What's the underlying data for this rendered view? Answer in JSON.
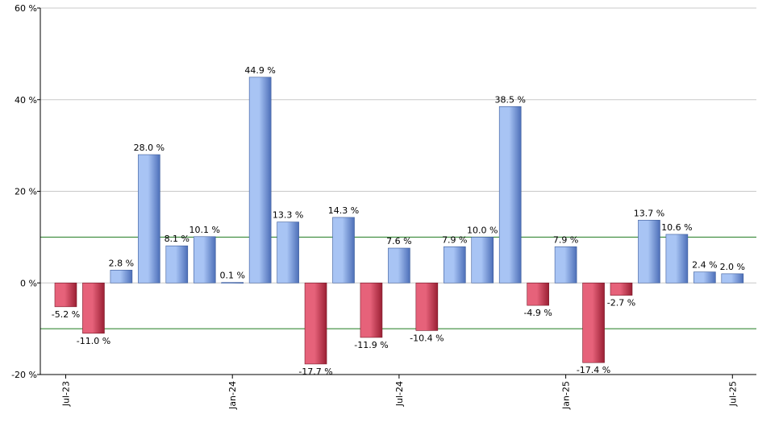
{
  "chart_data": {
    "type": "bar",
    "title": "",
    "xlabel": "",
    "ylabel": "",
    "ylim": [
      -20,
      60
    ],
    "y_ticks": [
      "-20 %",
      "0 %",
      "20 %",
      "40 %",
      "60 %"
    ],
    "y_tick_values": [
      -20,
      0,
      20,
      40,
      60
    ],
    "reference_lines": [
      10,
      -10
    ],
    "grid": true,
    "value_suffix": " %",
    "x_tick_labels": [
      {
        "label": "Jul-23",
        "index": 0
      },
      {
        "label": "Jan-24",
        "index": 6
      },
      {
        "label": "Jul-24",
        "index": 12
      },
      {
        "label": "Jan-25",
        "index": 18
      },
      {
        "label": "Jul-25",
        "index": 24
      }
    ],
    "values": [
      -5.2,
      -11.0,
      2.8,
      28.0,
      8.1,
      10.1,
      0.1,
      44.9,
      13.3,
      -17.7,
      14.3,
      -11.9,
      7.6,
      -10.4,
      7.9,
      10.0,
      38.5,
      -4.9,
      7.9,
      -17.4,
      -2.7,
      13.7,
      10.6,
      2.4,
      2.0
    ],
    "data_labels": [
      "-5.2 %",
      "-11.0 %",
      "2.8 %",
      "28.0 %",
      "8.1 %",
      "10.1 %",
      "0.1 %",
      "44.9 %",
      "13.3 %",
      "-17.7 %",
      "14.3 %",
      "-11.9 %",
      "7.6 %",
      "-10.4 %",
      "7.9 %",
      "10.0 %",
      "38.5 %",
      "-4.9 %",
      "7.9 %",
      "-17.4 %",
      "-2.7 %",
      "13.7 %",
      "10.6 %",
      "2.4 %",
      "2.0 %"
    ],
    "colors": {
      "positive_light": "#a8c4f4",
      "positive_dark": "#4d6fb8",
      "negative_light": "#e6627a",
      "negative_dark": "#9a1f33",
      "gridline": "#c8c8c8",
      "reference_line": "#1f7a1f",
      "axis": "#000000"
    }
  }
}
